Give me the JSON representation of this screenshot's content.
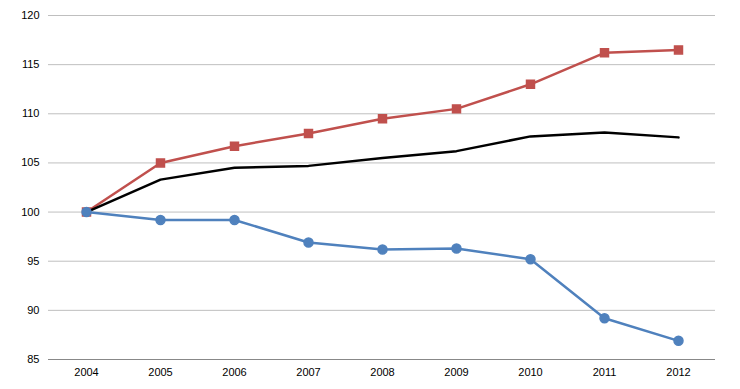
{
  "chart_data": {
    "type": "line",
    "categories": [
      "2004",
      "2005",
      "2006",
      "2007",
      "2008",
      "2009",
      "2010",
      "2011",
      "2012"
    ],
    "series": [
      {
        "color": "#c0504d",
        "marker": "square",
        "values": [
          100,
          105,
          106.7,
          108,
          109.5,
          110.5,
          113,
          116.2,
          116.5
        ]
      },
      {
        "color": "#000000",
        "marker": "none",
        "values": [
          100,
          103.3,
          104.5,
          104.7,
          105.5,
          106.2,
          107.7,
          108.1,
          107.6
        ]
      },
      {
        "color": "#4f81bd",
        "marker": "circle",
        "values": [
          100,
          99.2,
          99.2,
          96.9,
          96.2,
          96.3,
          95.2,
          89.2,
          86.9
        ]
      }
    ],
    "ylim": [
      85,
      120
    ],
    "yticks": [
      85,
      90,
      95,
      100,
      105,
      110,
      115,
      120
    ],
    "grid": true
  }
}
